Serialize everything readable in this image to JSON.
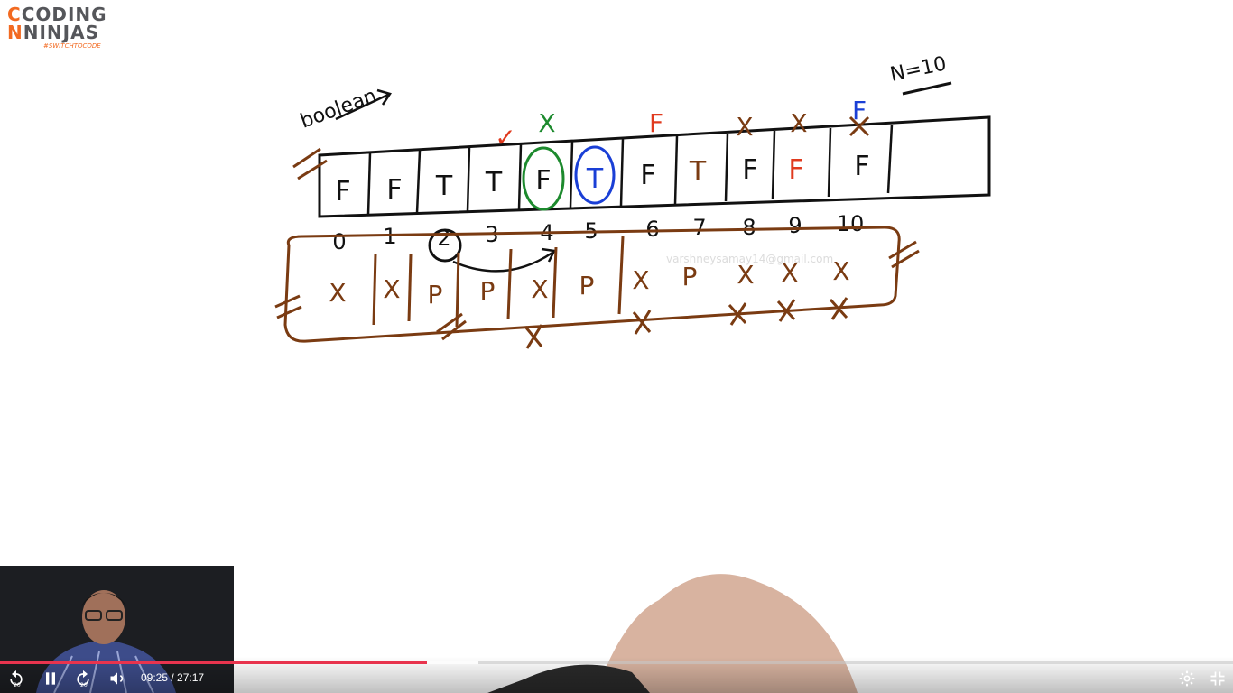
{
  "branding": {
    "logo_line1": "CODING",
    "logo_line2": "NINJAS",
    "tagline": "#SWITCHTOCODE"
  },
  "whiteboard": {
    "label_boolean": "boolean",
    "label_n": "N=10",
    "array_values": [
      "F",
      "F",
      "T",
      "T",
      "F",
      "T",
      "F",
      "T",
      "F",
      "F",
      "F"
    ],
    "indices": [
      "0",
      "1",
      "2",
      "3",
      "4",
      "5",
      "6",
      "7",
      "8",
      "9",
      "10"
    ],
    "top_marks": [
      "✓",
      "X",
      "F",
      "X",
      "X",
      "F"
    ],
    "bottom_row": [
      "X",
      "X",
      "P",
      "P",
      "X",
      "P",
      "X",
      "P",
      "X",
      "X",
      "X"
    ],
    "watermark": "varshneysamay14@gmail.com"
  },
  "player": {
    "current_time": "09:25",
    "separator": " / ",
    "duration": "27:17",
    "skip_back_seconds": "20",
    "skip_forward_seconds": "20",
    "progress_fraction": 0.346,
    "buffer_fraction": 0.388,
    "icons": [
      "skip-back-icon",
      "pause-icon",
      "skip-forward-icon",
      "volume-icon",
      "settings-icon",
      "exit-fullscreen-icon"
    ]
  }
}
